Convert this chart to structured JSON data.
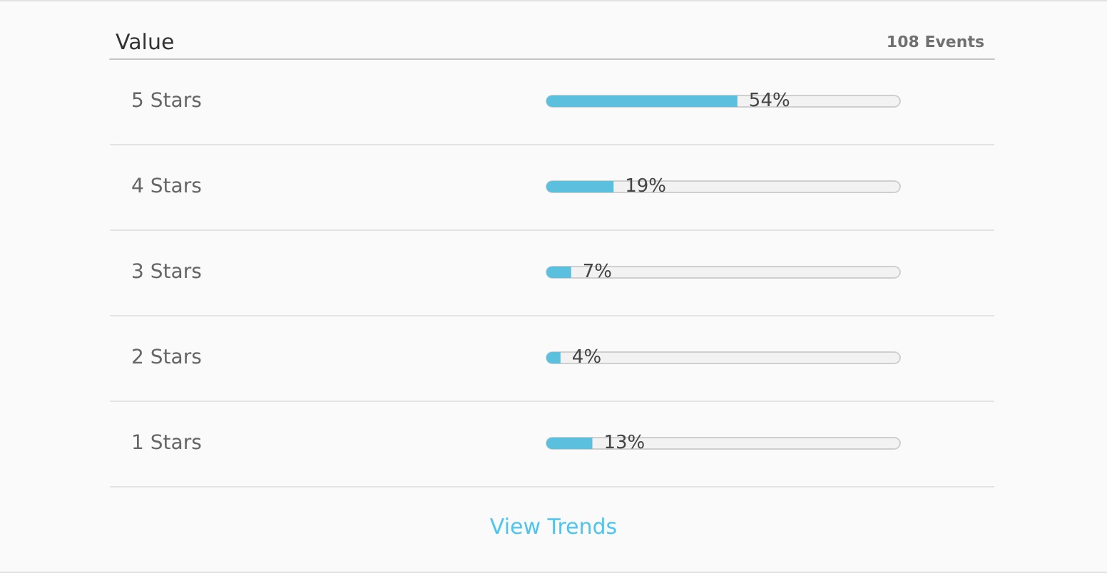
{
  "chart_data": {
    "type": "bar",
    "orientation": "horizontal",
    "title": "Value",
    "categories": [
      "5 Stars",
      "4 Stars",
      "3 Stars",
      "2 Stars",
      "1 Stars"
    ],
    "values": [
      54,
      19,
      7,
      4,
      13
    ],
    "color": "#5bc0de",
    "value_labels": [
      "54%",
      "19%",
      "7%",
      "4%",
      "13%"
    ],
    "xlim": [
      0,
      100
    ],
    "grid": "y",
    "tick_labels": "y",
    "annotations": [
      "108 Events",
      "View Trends"
    ]
  }
}
